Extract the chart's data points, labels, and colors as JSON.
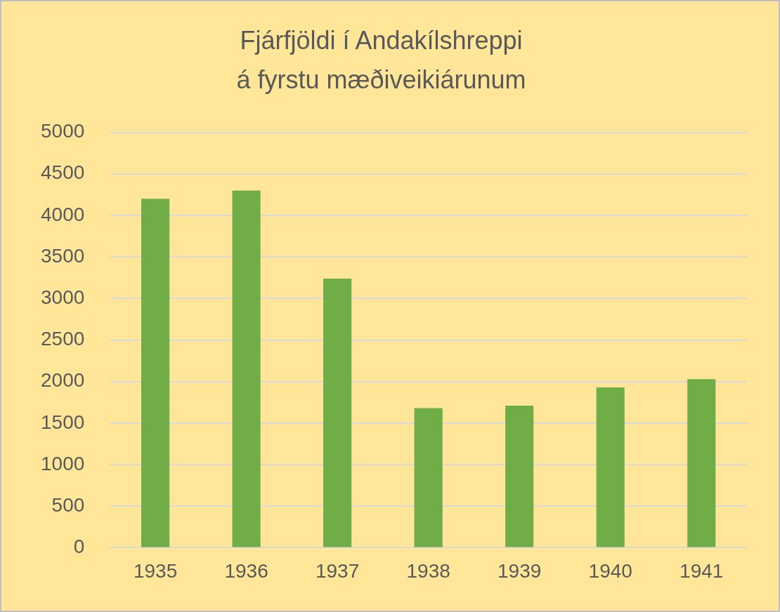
{
  "chart_data": {
    "type": "bar",
    "title": "Fjárfjöldi í Andakílshreppi\ná fyrstu mæðiveikiárunum",
    "categories": [
      "1935",
      "1936",
      "1937",
      "1938",
      "1939",
      "1940",
      "1941"
    ],
    "values": [
      4200,
      4300,
      3240,
      1680,
      1710,
      1930,
      2030
    ],
    "color": "#70ad47",
    "ylim": [
      0,
      5000
    ],
    "yticks": [
      0,
      500,
      1000,
      1500,
      2000,
      2500,
      3000,
      3500,
      4000,
      4500,
      5000
    ],
    "grid": "y"
  }
}
